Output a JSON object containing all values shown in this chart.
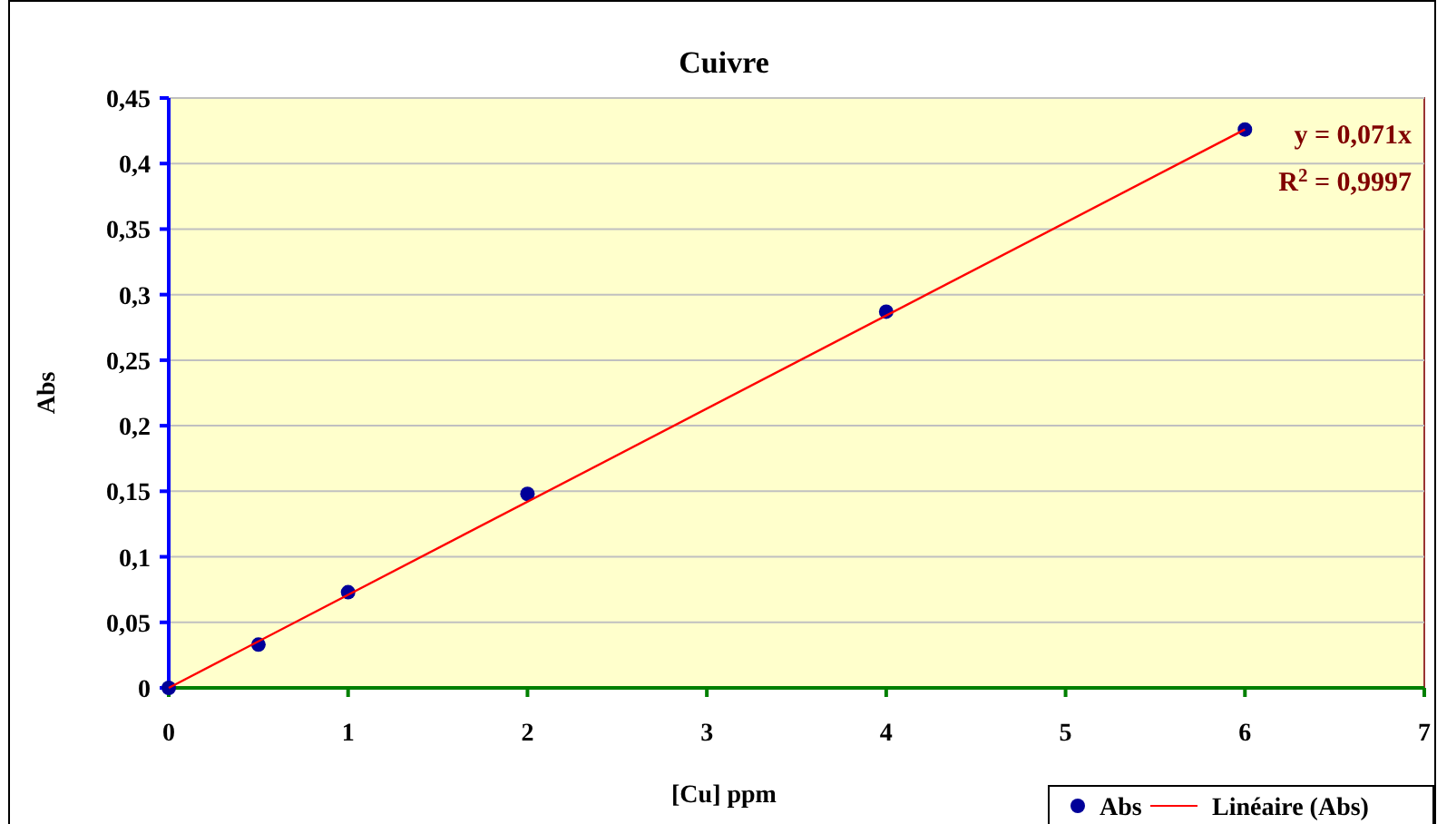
{
  "chart_data": {
    "type": "scatter",
    "title": "Cuivre",
    "xlabel": "[Cu] ppm",
    "ylabel": "Abs",
    "x": [
      0,
      0.5,
      1,
      2,
      4,
      6
    ],
    "series": [
      {
        "name": "Abs",
        "color": "#000099",
        "marker": "circle",
        "values": [
          0,
          0.033,
          0.073,
          0.148,
          0.287,
          0.426
        ]
      },
      {
        "name": "Linéaire (Abs)",
        "type": "line",
        "color": "#ff0000",
        "x": [
          0,
          6
        ],
        "values": [
          0,
          0.426
        ],
        "marker": "none",
        "line_style": "solid"
      }
    ],
    "xlim": [
      0,
      7
    ],
    "xticks": [
      0,
      1,
      2,
      3,
      4,
      5,
      6,
      7
    ],
    "ylim": [
      0,
      0.45
    ],
    "yticks": [
      0,
      {
        "value": 0.05,
        "label": "0,05"
      },
      {
        "value": 0.1,
        "label": "0,1"
      },
      {
        "value": 0.15,
        "label": "0,15"
      },
      {
        "value": 0.2,
        "label": "0,2"
      },
      {
        "value": 0.25,
        "label": "0,25"
      },
      {
        "value": 0.3,
        "label": "0,3"
      },
      {
        "value": 0.35,
        "label": "0,35"
      },
      {
        "value": 0.4,
        "label": "0,4"
      },
      {
        "value": 0.45,
        "label": "0,45"
      }
    ],
    "grid": "y",
    "legend": "bottom right",
    "annotations": [
      "y = 0,071x",
      "R$^{2}$ = 0,9997"
    ]
  }
}
